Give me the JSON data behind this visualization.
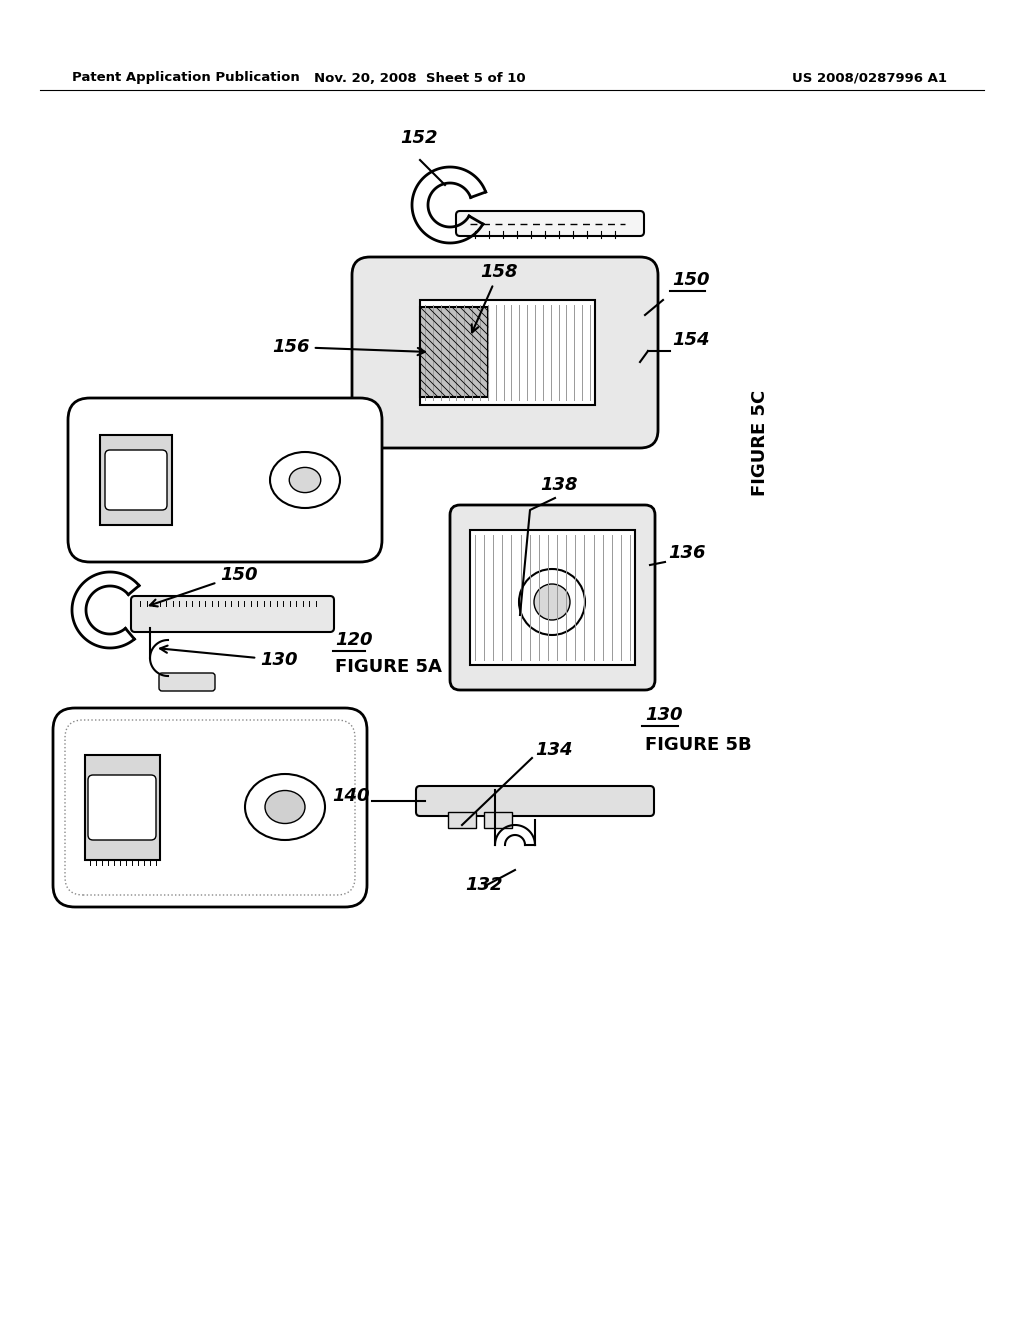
{
  "background_color": "#ffffff",
  "header_left": "Patent Application Publication",
  "header_center": "Nov. 20, 2008  Sheet 5 of 10",
  "header_right": "US 2008/0287996 A1",
  "fig5A_label": "FIGURE 5A",
  "fig5B_label": "FIGURE 5B",
  "fig5C_label": "FIGURE 5C"
}
